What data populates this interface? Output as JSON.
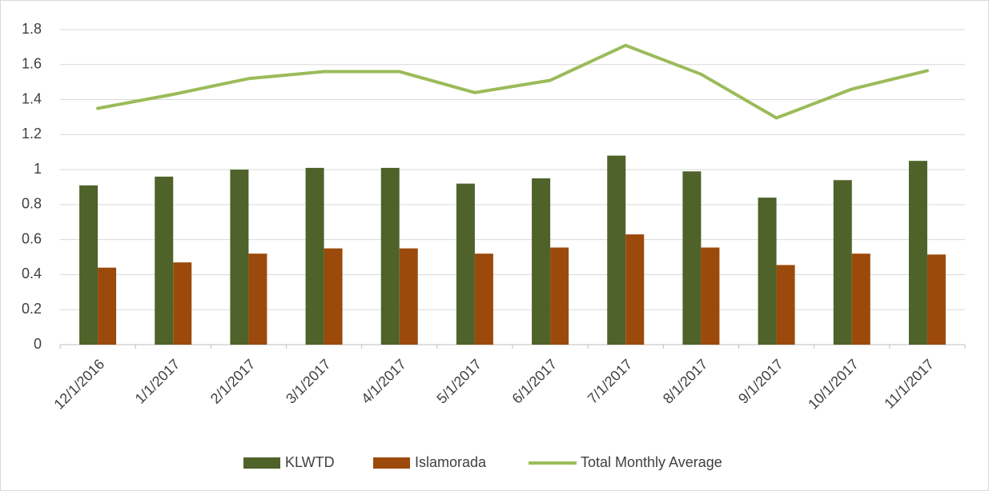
{
  "chart_data": {
    "type": "bar",
    "categories": [
      "12/1/2016",
      "1/1/2017",
      "2/1/2017",
      "3/1/2017",
      "4/1/2017",
      "5/1/2017",
      "6/1/2017",
      "7/1/2017",
      "8/1/2017",
      "9/1/2017",
      "10/1/2017",
      "11/1/2017"
    ],
    "series": [
      {
        "name": "KLWTD",
        "color": "#4e6229",
        "type": "bar",
        "values": [
          0.91,
          0.96,
          1.0,
          1.01,
          1.01,
          0.92,
          0.95,
          1.08,
          0.99,
          0.84,
          0.94,
          1.05
        ]
      },
      {
        "name": "Islamorada",
        "color": "#9c4a0b",
        "type": "bar",
        "values": [
          0.44,
          0.47,
          0.52,
          0.55,
          0.55,
          0.52,
          0.555,
          0.63,
          0.555,
          0.455,
          0.52,
          0.515
        ]
      },
      {
        "name": "Total Monthly Average",
        "color": "#9bbb59",
        "type": "line",
        "values": [
          1.35,
          1.43,
          1.52,
          1.56,
          1.56,
          1.44,
          1.51,
          1.71,
          1.545,
          1.295,
          1.46,
          1.565
        ]
      }
    ],
    "ylim": [
      0,
      1.8
    ],
    "yticks": [
      0,
      0.2,
      0.4,
      0.6,
      0.8,
      1,
      1.2,
      1.4,
      1.6,
      1.8
    ],
    "grid": true,
    "legend": "bottom"
  }
}
